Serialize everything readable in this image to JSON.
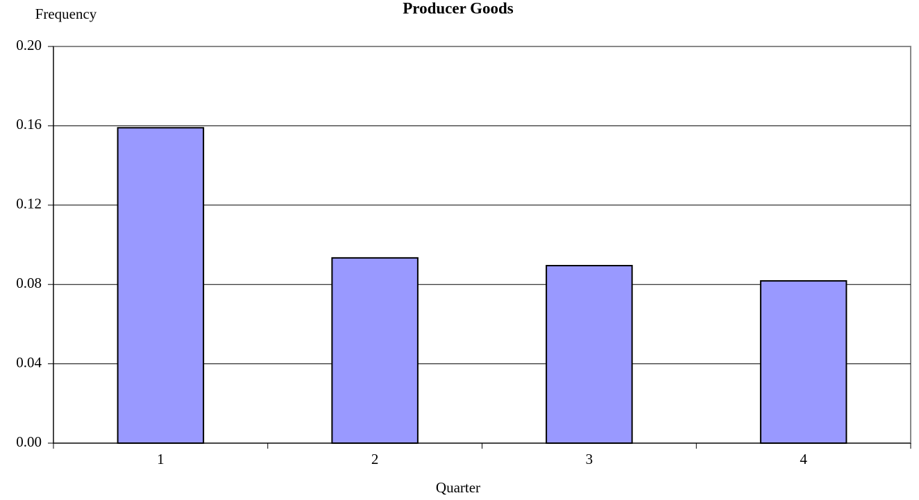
{
  "chart_data": {
    "type": "bar",
    "title": "Producer Goods",
    "y_label": "Frequency",
    "x_label": "Quarter",
    "categories": [
      "1",
      "2",
      "3",
      "4"
    ],
    "values": [
      0.159,
      0.0934,
      0.0895,
      0.0818
    ],
    "color": "#9999ff",
    "ylim": [
      0,
      0.2
    ],
    "yticks": [
      {
        "value": 0,
        "label": "0.00"
      },
      0.04,
      0.08,
      0.12,
      0.16,
      {
        "value": 0.2,
        "label": "0.20"
      }
    ],
    "grid": true
  }
}
